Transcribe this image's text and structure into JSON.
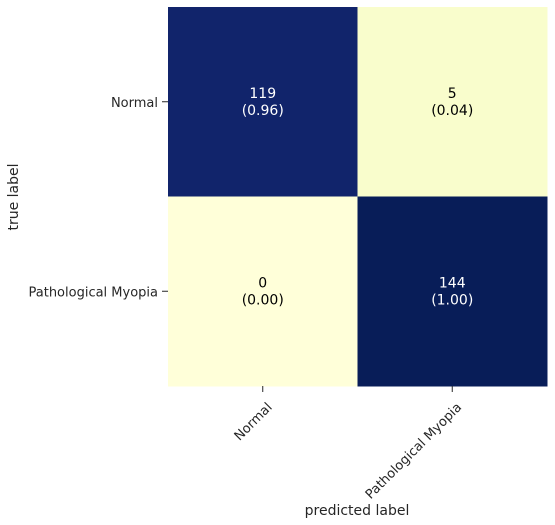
{
  "chart_data": {
    "type": "heatmap",
    "title": "",
    "xlabel": "predicted label",
    "ylabel": "true label",
    "x_categories": [
      "Normal",
      "Pathological Myopia"
    ],
    "y_categories": [
      "Normal",
      "Pathological Myopia"
    ],
    "counts": [
      [
        119,
        5
      ],
      [
        0,
        144
      ]
    ],
    "fractions": [
      [
        "(0.96)",
        "(0.04)"
      ],
      [
        "(0.00)",
        "(1.00)"
      ]
    ],
    "fraction_values": [
      [
        0.96,
        0.04
      ],
      [
        0.0,
        1.0
      ]
    ],
    "colormap": {
      "low": "#ffffd9",
      "high": "#081d58"
    },
    "value_range": [
      0,
      1
    ],
    "colorbar": false,
    "grid": false
  }
}
